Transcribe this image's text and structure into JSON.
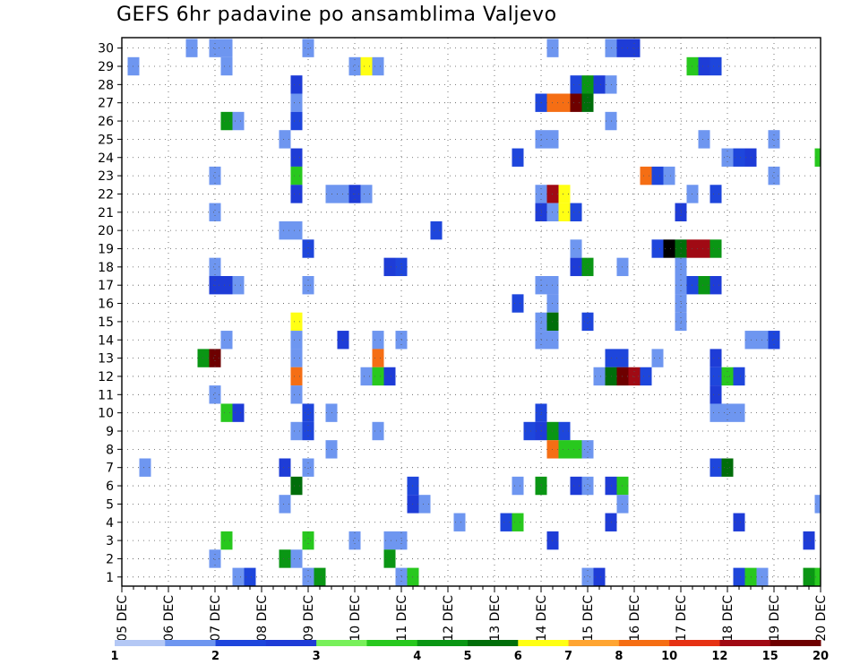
{
  "chart_data": {
    "type": "heatmap",
    "title": "GEFS 6hr padavine po ansamblima Valjevo",
    "x_tick_labels": [
      "05 DEC",
      "06 DEC",
      "07 DEC",
      "08 DEC",
      "09 DEC",
      "10 DEC",
      "11 DEC",
      "12 DEC",
      "13 DEC",
      "14 DEC",
      "15 DEC",
      "16 DEC",
      "17 DEC",
      "18 DEC",
      "19 DEC",
      "20 DEC"
    ],
    "x_steps_per_day": 4,
    "y_tick_labels": [
      1,
      2,
      3,
      4,
      5,
      6,
      7,
      8,
      9,
      10,
      11,
      12,
      13,
      14,
      15,
      16,
      17,
      18,
      19,
      20,
      21,
      22,
      23,
      24,
      25,
      26,
      27,
      28,
      29,
      30
    ],
    "ylim": [
      0,
      30
    ],
    "grid": true,
    "legend_placement": "bottom",
    "legend_levels": [
      "1",
      "2",
      "3",
      "4",
      "5",
      "6",
      "7",
      "8",
      "10",
      "12",
      "15",
      "20"
    ],
    "legend_colors": [
      "#b4c8f5",
      "#6e96f0",
      "#1e46dc",
      "#1e3cd7",
      "#78f05a",
      "#28c81e",
      "#0a9614",
      "#006e0a",
      "#ffff14",
      "#ffa532",
      "#f56e14",
      "#e63214",
      "#a00a14",
      "#6e0000"
    ],
    "cells": [
      [
        6,
        30,
        1
      ],
      [
        8,
        30,
        1
      ],
      [
        9,
        30,
        1
      ],
      [
        16,
        30,
        1
      ],
      [
        37,
        30,
        1
      ],
      [
        42,
        30,
        1
      ],
      [
        43,
        30,
        3
      ],
      [
        44,
        30,
        3
      ],
      [
        1,
        29,
        1
      ],
      [
        9,
        29,
        1
      ],
      [
        20,
        29,
        1
      ],
      [
        21,
        29,
        8
      ],
      [
        22,
        29,
        1
      ],
      [
        49,
        29,
        5
      ],
      [
        50,
        29,
        3
      ],
      [
        51,
        29,
        2
      ],
      [
        15,
        28,
        3
      ],
      [
        39,
        28,
        2
      ],
      [
        40,
        28,
        6
      ],
      [
        41,
        28,
        3
      ],
      [
        42,
        28,
        1
      ],
      [
        15,
        27,
        1
      ],
      [
        36,
        27,
        2
      ],
      [
        37,
        27,
        10
      ],
      [
        38,
        27,
        10
      ],
      [
        39,
        27,
        13
      ],
      [
        40,
        27,
        7
      ],
      [
        9,
        26,
        6
      ],
      [
        10,
        26,
        1
      ],
      [
        15,
        26,
        2
      ],
      [
        42,
        26,
        1
      ],
      [
        14,
        25,
        1
      ],
      [
        36,
        25,
        1
      ],
      [
        37,
        25,
        1
      ],
      [
        50,
        25,
        1
      ],
      [
        56,
        25,
        1
      ],
      [
        15,
        24,
        3
      ],
      [
        34,
        24,
        2
      ],
      [
        52,
        24,
        1
      ],
      [
        53,
        24,
        2
      ],
      [
        54,
        24,
        3
      ],
      [
        60,
        24,
        5
      ],
      [
        8,
        23,
        1
      ],
      [
        15,
        23,
        5
      ],
      [
        45,
        23,
        10
      ],
      [
        46,
        23,
        2
      ],
      [
        47,
        23,
        1
      ],
      [
        56,
        23,
        1
      ],
      [
        15,
        22,
        3
      ],
      [
        18,
        22,
        1
      ],
      [
        19,
        22,
        1
      ],
      [
        20,
        22,
        3
      ],
      [
        21,
        22,
        1
      ],
      [
        36,
        22,
        1
      ],
      [
        37,
        22,
        12
      ],
      [
        38,
        22,
        8
      ],
      [
        49,
        22,
        1
      ],
      [
        51,
        22,
        2
      ],
      [
        8,
        21,
        1
      ],
      [
        36,
        21,
        3
      ],
      [
        37,
        21,
        1
      ],
      [
        38,
        21,
        8
      ],
      [
        39,
        21,
        2
      ],
      [
        48,
        21,
        3
      ],
      [
        14,
        20,
        1
      ],
      [
        15,
        20,
        1
      ],
      [
        27,
        20,
        2
      ],
      [
        16,
        19,
        2
      ],
      [
        39,
        19,
        1
      ],
      [
        46,
        19,
        2
      ],
      [
        47,
        19,
        14
      ],
      [
        48,
        19,
        7
      ],
      [
        49,
        19,
        12
      ],
      [
        50,
        19,
        12
      ],
      [
        51,
        19,
        6
      ],
      [
        8,
        18,
        1
      ],
      [
        23,
        18,
        3
      ],
      [
        24,
        18,
        2
      ],
      [
        39,
        18,
        3
      ],
      [
        40,
        18,
        6
      ],
      [
        43,
        18,
        1
      ],
      [
        48,
        18,
        1
      ],
      [
        8,
        17,
        3
      ],
      [
        9,
        17,
        3
      ],
      [
        10,
        17,
        1
      ],
      [
        16,
        17,
        1
      ],
      [
        36,
        17,
        1
      ],
      [
        37,
        17,
        1
      ],
      [
        48,
        17,
        1
      ],
      [
        49,
        17,
        2
      ],
      [
        50,
        17,
        6
      ],
      [
        51,
        17,
        3
      ],
      [
        34,
        16,
        2
      ],
      [
        37,
        16,
        1
      ],
      [
        48,
        16,
        1
      ],
      [
        15,
        15,
        8
      ],
      [
        36,
        15,
        1
      ],
      [
        37,
        15,
        7
      ],
      [
        40,
        15,
        2
      ],
      [
        48,
        15,
        1
      ],
      [
        9,
        14,
        1
      ],
      [
        15,
        14,
        1
      ],
      [
        19,
        14,
        3
      ],
      [
        22,
        14,
        1
      ],
      [
        24,
        14,
        1
      ],
      [
        36,
        14,
        1
      ],
      [
        37,
        14,
        1
      ],
      [
        54,
        14,
        1
      ],
      [
        55,
        14,
        1
      ],
      [
        56,
        14,
        2
      ],
      [
        7,
        13,
        6
      ],
      [
        8,
        13,
        13
      ],
      [
        15,
        13,
        1
      ],
      [
        22,
        13,
        10
      ],
      [
        42,
        13,
        2
      ],
      [
        43,
        13,
        2
      ],
      [
        46,
        13,
        1
      ],
      [
        51,
        13,
        3
      ],
      [
        15,
        12,
        10
      ],
      [
        21,
        12,
        1
      ],
      [
        22,
        12,
        5
      ],
      [
        23,
        12,
        3
      ],
      [
        41,
        12,
        1
      ],
      [
        42,
        12,
        7
      ],
      [
        43,
        12,
        13
      ],
      [
        44,
        12,
        12
      ],
      [
        45,
        12,
        2
      ],
      [
        51,
        12,
        2
      ],
      [
        52,
        12,
        5
      ],
      [
        53,
        12,
        2
      ],
      [
        8,
        11,
        1
      ],
      [
        15,
        11,
        1
      ],
      [
        51,
        11,
        3
      ],
      [
        9,
        10,
        5
      ],
      [
        10,
        10,
        3
      ],
      [
        16,
        10,
        2
      ],
      [
        18,
        10,
        1
      ],
      [
        36,
        10,
        2
      ],
      [
        51,
        10,
        1
      ],
      [
        52,
        10,
        1
      ],
      [
        53,
        10,
        1
      ],
      [
        15,
        9,
        1
      ],
      [
        16,
        9,
        2
      ],
      [
        22,
        9,
        1
      ],
      [
        35,
        9,
        2
      ],
      [
        36,
        9,
        3
      ],
      [
        37,
        9,
        6
      ],
      [
        38,
        9,
        2
      ],
      [
        18,
        8,
        1
      ],
      [
        37,
        8,
        10
      ],
      [
        38,
        8,
        5
      ],
      [
        39,
        8,
        5
      ],
      [
        40,
        8,
        1
      ],
      [
        2,
        7,
        1
      ],
      [
        14,
        7,
        3
      ],
      [
        16,
        7,
        1
      ],
      [
        51,
        7,
        2
      ],
      [
        52,
        7,
        7
      ],
      [
        15,
        6,
        7
      ],
      [
        25,
        6,
        2
      ],
      [
        34,
        6,
        1
      ],
      [
        36,
        6,
        6
      ],
      [
        39,
        6,
        3
      ],
      [
        40,
        6,
        1
      ],
      [
        42,
        6,
        3
      ],
      [
        43,
        6,
        5
      ],
      [
        14,
        5,
        1
      ],
      [
        25,
        5,
        3
      ],
      [
        26,
        5,
        1
      ],
      [
        43,
        5,
        1
      ],
      [
        60,
        5,
        1
      ],
      [
        29,
        4,
        1
      ],
      [
        33,
        4,
        2
      ],
      [
        34,
        4,
        5
      ],
      [
        42,
        4,
        3
      ],
      [
        53,
        4,
        3
      ],
      [
        9,
        3,
        5
      ],
      [
        16,
        3,
        5
      ],
      [
        20,
        3,
        1
      ],
      [
        23,
        3,
        1
      ],
      [
        24,
        3,
        1
      ],
      [
        37,
        3,
        3
      ],
      [
        59,
        3,
        3
      ],
      [
        8,
        2,
        1
      ],
      [
        14,
        2,
        6
      ],
      [
        15,
        2,
        1
      ],
      [
        23,
        2,
        6
      ],
      [
        10,
        1,
        1
      ],
      [
        11,
        1,
        2
      ],
      [
        16,
        1,
        1
      ],
      [
        17,
        1,
        6
      ],
      [
        24,
        1,
        1
      ],
      [
        25,
        1,
        5
      ],
      [
        40,
        1,
        1
      ],
      [
        41,
        1,
        3
      ],
      [
        53,
        1,
        2
      ],
      [
        54,
        1,
        5
      ],
      [
        55,
        1,
        1
      ],
      [
        59,
        1,
        6
      ],
      [
        60,
        1,
        5
      ]
    ]
  }
}
